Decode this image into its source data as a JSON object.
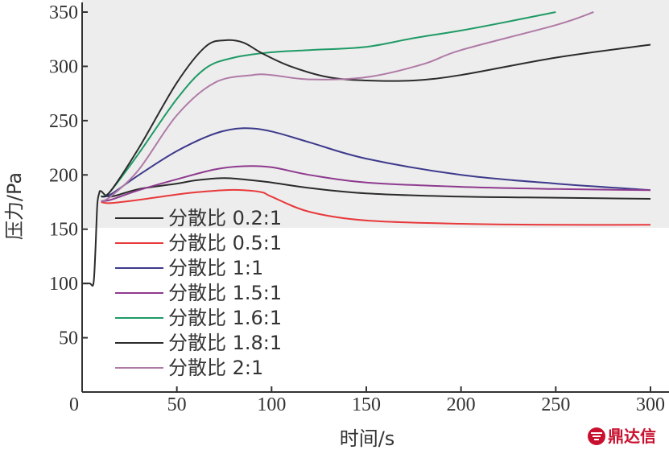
{
  "chart_data": {
    "type": "line",
    "title": "",
    "xlabel": "时间/s",
    "ylabel": "压力/Pa",
    "xlim": [
      0,
      300
    ],
    "ylim": [
      0,
      350
    ],
    "xticks": [
      "0",
      "50",
      "100",
      "150",
      "200",
      "250",
      "300"
    ],
    "yticks": [
      "50",
      "100",
      "150",
      "200",
      "250",
      "300",
      "350"
    ],
    "grid": false,
    "legend_position": "bottom-left",
    "series": [
      {
        "name": "分散比 0.2:1",
        "color": "#2b2b2b",
        "x": [
          0,
          4,
          6,
          7,
          8,
          9,
          10,
          15,
          30,
          50,
          60,
          75,
          90,
          100,
          120,
          150,
          200,
          250,
          300
        ],
        "y": [
          100,
          100,
          100,
          130,
          172,
          183,
          185,
          180,
          187,
          192,
          195,
          197,
          195,
          193,
          188,
          183,
          180,
          179,
          178
        ]
      },
      {
        "name": "分散比 0.5:1",
        "color": "#e8393b",
        "x": [
          10,
          15,
          30,
          50,
          60,
          75,
          85,
          95,
          100,
          120,
          150,
          200,
          250,
          300
        ],
        "y": [
          175,
          174,
          177,
          182,
          184,
          186,
          186,
          184,
          180,
          166,
          158,
          155,
          154,
          154
        ]
      },
      {
        "name": "分散比 1:1",
        "color": "#3d3a8c",
        "x": [
          10,
          15,
          30,
          50,
          70,
          85,
          100,
          120,
          150,
          200,
          250,
          300
        ],
        "y": [
          180,
          182,
          200,
          222,
          238,
          243,
          240,
          230,
          215,
          200,
          192,
          186
        ]
      },
      {
        "name": "分散比 1.5:1",
        "color": "#8e3a8e",
        "x": [
          10,
          15,
          30,
          50,
          70,
          85,
          100,
          120,
          150,
          200,
          250,
          300
        ],
        "y": [
          176,
          177,
          186,
          196,
          205,
          208,
          207,
          200,
          193,
          189,
          187,
          186
        ]
      },
      {
        "name": "分散比 1.6:1",
        "color": "#1f9a66",
        "x": [
          10,
          15,
          30,
          50,
          65,
          80,
          100,
          120,
          150,
          175,
          200,
          230,
          250
        ],
        "y": [
          180,
          185,
          220,
          270,
          298,
          308,
          313,
          315,
          318,
          326,
          333,
          343,
          350
        ]
      },
      {
        "name": "分散比 1.8:1",
        "color": "#2b2b2b",
        "x": [
          10,
          15,
          30,
          50,
          65,
          75,
          85,
          95,
          110,
          130,
          150,
          175,
          200,
          250,
          300
        ],
        "y": [
          180,
          185,
          225,
          285,
          318,
          324,
          322,
          312,
          300,
          290,
          287,
          287,
          292,
          308,
          320
        ]
      },
      {
        "name": "分散比 2:1",
        "color": "#b07aa6",
        "x": [
          10,
          15,
          30,
          50,
          70,
          90,
          100,
          120,
          150,
          180,
          200,
          250,
          270
        ],
        "y": [
          176,
          180,
          205,
          255,
          285,
          292,
          292,
          288,
          290,
          302,
          315,
          338,
          350
        ]
      }
    ]
  },
  "watermark": {
    "text": "鼎达信",
    "color": "#c8102e"
  }
}
